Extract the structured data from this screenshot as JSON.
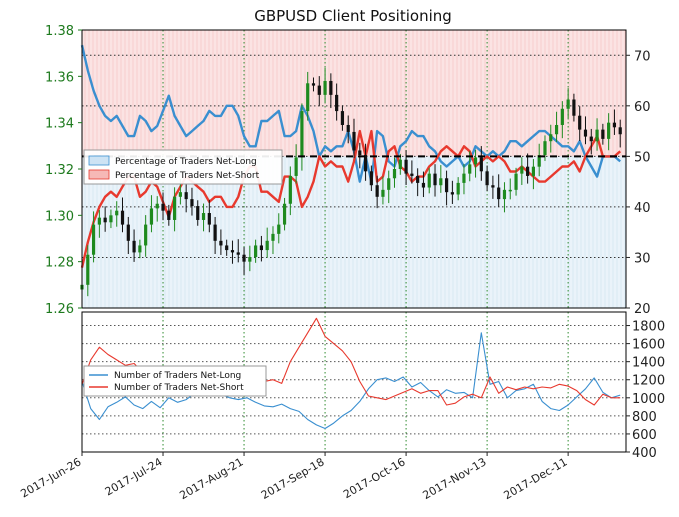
{
  "chart_data": [
    {
      "type": "line",
      "title": "GBPUSD Client Positioning",
      "x_tick_labels": [
        "2017-Jun-26",
        "2017-Jul-24",
        "2017-Aug-21",
        "2017-Sep-18",
        "2017-Oct-16",
        "2017-Nov-13",
        "2017-Dec-11"
      ],
      "x_tick_days": [
        0,
        28,
        56,
        84,
        112,
        140,
        168
      ],
      "x_range_days": [
        0,
        188
      ],
      "y_left_label": "",
      "y_left_ticks": [
        "1.26",
        "1.28",
        "1.30",
        "1.32",
        "1.34",
        "1.36",
        "1.38"
      ],
      "y_left_range": [
        1.26,
        1.38
      ],
      "y_right_label": "",
      "y_right_ticks": [
        "20",
        "30",
        "40",
        "50",
        "60",
        "70"
      ],
      "y_right_range": [
        20,
        75
      ],
      "reference_line": 50,
      "grid": true,
      "legend_position": "center-left",
      "price_series": {
        "name": "GBPUSD",
        "days": [
          0,
          2,
          4,
          6,
          8,
          10,
          12,
          14,
          16,
          18,
          20,
          22,
          24,
          26,
          28,
          30,
          32,
          34,
          36,
          38,
          40,
          42,
          44,
          46,
          48,
          50,
          52,
          54,
          56,
          58,
          60,
          62,
          64,
          66,
          68,
          70,
          72,
          74,
          76,
          78,
          80,
          82,
          84,
          86,
          88,
          90,
          92,
          94,
          96,
          98,
          100,
          102,
          104,
          106,
          108,
          110,
          112,
          114,
          116,
          118,
          120,
          122,
          124,
          126,
          128,
          130,
          132,
          134,
          136,
          138,
          140,
          142,
          144,
          146,
          148,
          150,
          152,
          154,
          156,
          158,
          160,
          162,
          164,
          166,
          168,
          170,
          172,
          174,
          176,
          178,
          180,
          182,
          184,
          186
        ],
        "values": [
          1.27,
          1.283,
          1.296,
          1.299,
          1.297,
          1.3,
          1.302,
          1.296,
          1.289,
          1.284,
          1.287,
          1.296,
          1.303,
          1.305,
          1.302,
          1.298,
          1.308,
          1.31,
          1.307,
          1.304,
          1.298,
          1.301,
          1.296,
          1.289,
          1.287,
          1.285,
          1.284,
          1.283,
          1.28,
          1.282,
          1.287,
          1.285,
          1.289,
          1.292,
          1.296,
          1.305,
          1.317,
          1.325,
          1.345,
          1.357,
          1.356,
          1.352,
          1.358,
          1.352,
          1.345,
          1.339,
          1.336,
          1.328,
          1.326,
          1.319,
          1.313,
          1.308,
          1.311,
          1.316,
          1.32,
          1.324,
          1.318,
          1.317,
          1.314,
          1.312,
          1.318,
          1.313,
          1.316,
          1.31,
          1.309,
          1.314,
          1.318,
          1.322,
          1.325,
          1.319,
          1.313,
          1.312,
          1.307,
          1.311,
          1.311,
          1.318,
          1.321,
          1.317,
          1.321,
          1.326,
          1.332,
          1.335,
          1.339,
          1.346,
          1.35,
          1.343,
          1.337,
          1.334,
          1.332,
          1.337,
          1.333,
          1.34,
          1.338,
          1.335
        ]
      },
      "series": [
        {
          "name": "Percentage of Traders Net-Long",
          "color": "#3a8fd0",
          "days": [
            0,
            2,
            4,
            6,
            8,
            10,
            12,
            14,
            16,
            18,
            20,
            22,
            24,
            26,
            28,
            30,
            32,
            34,
            36,
            38,
            40,
            42,
            44,
            46,
            48,
            50,
            52,
            54,
            56,
            58,
            60,
            62,
            64,
            66,
            68,
            70,
            72,
            74,
            76,
            78,
            80,
            82,
            84,
            86,
            88,
            90,
            92,
            94,
            96,
            98,
            100,
            102,
            104,
            106,
            108,
            110,
            112,
            114,
            116,
            118,
            120,
            122,
            124,
            126,
            128,
            130,
            132,
            134,
            136,
            138,
            140,
            142,
            144,
            146,
            148,
            150,
            152,
            154,
            156,
            158,
            160,
            162,
            164,
            166,
            168,
            170,
            172,
            174,
            176,
            178,
            180,
            182,
            184,
            186
          ],
          "values": [
            72,
            67,
            63,
            60,
            58,
            57,
            58,
            56,
            54,
            54,
            58,
            57,
            55,
            56,
            59,
            62,
            58,
            56,
            54,
            55,
            56,
            57,
            59,
            58,
            58,
            60,
            60,
            58,
            54,
            52,
            52,
            57,
            57,
            58,
            59,
            54,
            54,
            55,
            60,
            58,
            55,
            50,
            52,
            51,
            52,
            52,
            55,
            51,
            45,
            50,
            45,
            55,
            54,
            49,
            48,
            52,
            53,
            55,
            54,
            54,
            52,
            51,
            49,
            48,
            49,
            50,
            48,
            49,
            52,
            51,
            50,
            51,
            50,
            51,
            53,
            53,
            52,
            53,
            54,
            55,
            55,
            54,
            53,
            52,
            52,
            51,
            53,
            50,
            48,
            46,
            50,
            50,
            50,
            49
          ]
        },
        {
          "name": "Percentage of Traders Net-Short",
          "color": "#e8392e",
          "days": [
            0,
            2,
            4,
            6,
            8,
            10,
            12,
            14,
            16,
            18,
            20,
            22,
            24,
            26,
            28,
            30,
            32,
            34,
            36,
            38,
            40,
            42,
            44,
            46,
            48,
            50,
            52,
            54,
            56,
            58,
            60,
            62,
            64,
            66,
            68,
            70,
            72,
            74,
            76,
            78,
            80,
            82,
            84,
            86,
            88,
            90,
            92,
            94,
            96,
            98,
            100,
            102,
            104,
            106,
            108,
            110,
            112,
            114,
            116,
            118,
            120,
            122,
            124,
            126,
            128,
            130,
            132,
            134,
            136,
            138,
            140,
            142,
            144,
            146,
            148,
            150,
            152,
            154,
            156,
            158,
            160,
            162,
            164,
            166,
            168,
            170,
            172,
            174,
            176,
            178,
            180,
            182,
            184,
            186
          ],
          "values": [
            28,
            33,
            37,
            40,
            42,
            43,
            42,
            44,
            46,
            46,
            42,
            43,
            45,
            44,
            41,
            38,
            42,
            44,
            46,
            45,
            44,
            43,
            41,
            42,
            42,
            40,
            40,
            42,
            46,
            48,
            48,
            43,
            43,
            42,
            41,
            46,
            46,
            45,
            40,
            42,
            45,
            50,
            48,
            49,
            48,
            48,
            45,
            49,
            55,
            50,
            55,
            45,
            46,
            51,
            52,
            48,
            47,
            45,
            46,
            46,
            48,
            49,
            51,
            52,
            51,
            50,
            52,
            51,
            48,
            49,
            50,
            49,
            50,
            49,
            47,
            47,
            48,
            47,
            46,
            45,
            45,
            46,
            47,
            48,
            48,
            49,
            47,
            50,
            52,
            54,
            50,
            50,
            50,
            51
          ]
        }
      ]
    },
    {
      "type": "line",
      "y_right_ticks": [
        "400",
        "600",
        "800",
        "1000",
        "1200",
        "1400",
        "1600",
        "1800"
      ],
      "y_right_range": [
        400,
        1950
      ],
      "grid": true,
      "legend_position": "upper-left",
      "series": [
        {
          "name": "Number of Traders Net-Long",
          "color": "#3a8fd0",
          "days": [
            0,
            3,
            6,
            9,
            12,
            15,
            18,
            21,
            24,
            27,
            30,
            33,
            36,
            39,
            42,
            45,
            48,
            51,
            54,
            57,
            60,
            63,
            66,
            69,
            72,
            75,
            78,
            81,
            84,
            87,
            90,
            93,
            96,
            99,
            102,
            105,
            108,
            111,
            114,
            117,
            120,
            123,
            126,
            129,
            132,
            135,
            138,
            141,
            144,
            147,
            150,
            153,
            156,
            159,
            162,
            165,
            168,
            171,
            174,
            177,
            180,
            183,
            186
          ],
          "values": [
            1180,
            880,
            760,
            900,
            950,
            1010,
            920,
            880,
            960,
            890,
            1000,
            950,
            980,
            1050,
            1140,
            1120,
            1040,
            1000,
            980,
            1000,
            950,
            910,
            900,
            930,
            880,
            850,
            760,
            700,
            660,
            720,
            800,
            860,
            960,
            1100,
            1200,
            1220,
            1180,
            1230,
            1120,
            1170,
            1080,
            1010,
            1090,
            1050,
            1060,
            1000,
            1720,
            1150,
            1180,
            1000,
            1080,
            1100,
            1150,
            960,
            880,
            860,
            920,
            1010,
            1100,
            1220,
            1060,
            1000,
            1030
          ]
        },
        {
          "name": "Number of Traders Net-Short",
          "color": "#e8392e",
          "days": [
            0,
            3,
            6,
            9,
            12,
            15,
            18,
            21,
            24,
            27,
            30,
            33,
            36,
            39,
            42,
            45,
            48,
            51,
            54,
            57,
            60,
            63,
            66,
            69,
            72,
            75,
            78,
            81,
            84,
            87,
            90,
            93,
            96,
            99,
            102,
            105,
            108,
            111,
            114,
            117,
            120,
            123,
            126,
            129,
            132,
            135,
            138,
            141,
            144,
            147,
            150,
            153,
            156,
            159,
            162,
            165,
            168,
            171,
            174,
            177,
            180,
            183,
            186
          ],
          "values": [
            1150,
            1420,
            1560,
            1480,
            1420,
            1360,
            1380,
            1280,
            1310,
            1250,
            1300,
            1280,
            1270,
            1230,
            1120,
            1120,
            1080,
            1050,
            1080,
            1130,
            1150,
            1180,
            1200,
            1160,
            1400,
            1560,
            1720,
            1880,
            1680,
            1600,
            1520,
            1400,
            1180,
            1020,
            1000,
            980,
            1020,
            1060,
            1100,
            1050,
            1080,
            1080,
            920,
            940,
            1010,
            1040,
            1000,
            1230,
            1050,
            1120,
            1090,
            1120,
            1100,
            1120,
            1110,
            1150,
            1130,
            1080,
            980,
            920,
            1040,
            1000,
            1000
          ]
        }
      ]
    }
  ]
}
